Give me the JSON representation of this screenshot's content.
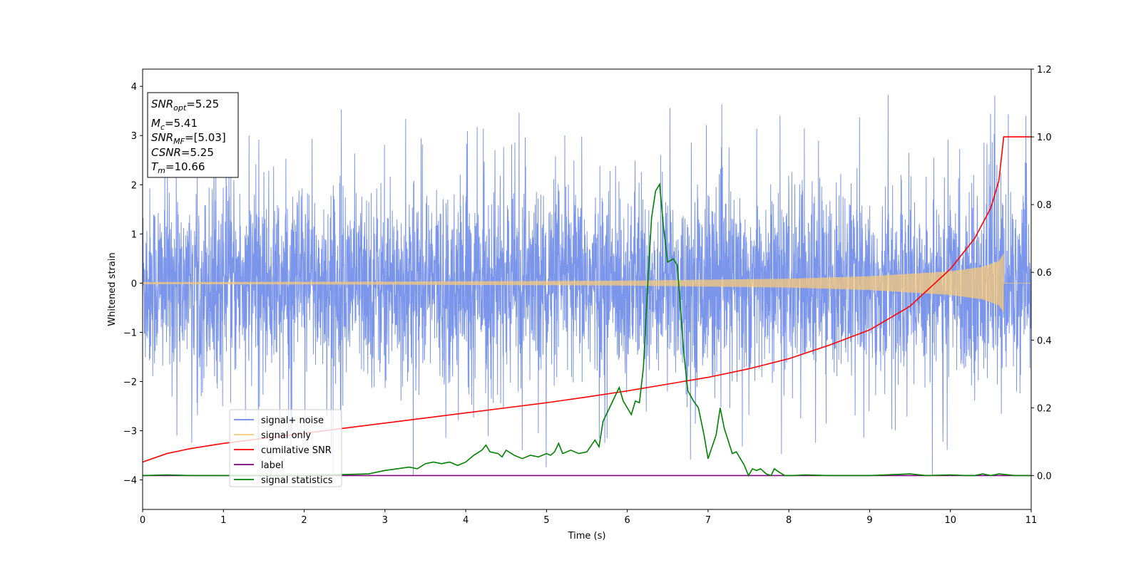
{
  "chart_data": {
    "type": "line",
    "xlabel": "Time (s)",
    "ylabel": "Whitened strain",
    "xlim": [
      0,
      11
    ],
    "ylim": [
      -4.6,
      4.35
    ],
    "y2lim": [
      -0.1,
      1.2
    ],
    "x_ticks": [
      "0",
      "1",
      "2",
      "3",
      "4",
      "5",
      "6",
      "7",
      "8",
      "9",
      "10",
      "11"
    ],
    "y_ticks": [
      "−4",
      "−3",
      "−2",
      "−1",
      "0",
      "1",
      "2",
      "3",
      "4"
    ],
    "y_tick_values": [
      -4,
      -3,
      -2,
      -1,
      0,
      1,
      2,
      3,
      4
    ],
    "y2_ticks": [
      "0.0",
      "0.2",
      "0.4",
      "0.6",
      "0.8",
      "1.0",
      "1.2"
    ],
    "y2_tick_values": [
      0.0,
      0.2,
      0.4,
      0.6,
      0.8,
      1.0,
      1.2
    ],
    "grid": false,
    "legend_position": "bottom-left",
    "annotations": [
      {
        "main": "SNR",
        "sub": "opt",
        "rest": "=5.25"
      },
      {
        "main": "M",
        "sub": "c",
        "rest": "=5.41"
      },
      {
        "main": "SNR",
        "sub": "MF",
        "rest": "=[5.03]"
      },
      {
        "main": "CSNR",
        "sub": "",
        "rest": "=5.25"
      },
      {
        "main": "T",
        "sub": "m",
        "rest": "=10.66"
      }
    ],
    "series": [
      {
        "name": "signal+ noise",
        "axis": "left",
        "color": "#6d8ae8",
        "noise_envelope": {
          "typical_min": -1.9,
          "typical_max": 1.9,
          "extreme_min": -4.2,
          "extreme_max": 3.95
        }
      },
      {
        "name": "signal only",
        "axis": "left",
        "color": "#f5c97a",
        "chirp_envelope": {
          "x": [
            0,
            3,
            6,
            8,
            9,
            10,
            10.4,
            10.6,
            10.66
          ],
          "amplitude": [
            0.02,
            0.03,
            0.05,
            0.09,
            0.14,
            0.24,
            0.33,
            0.45,
            0.6
          ]
        }
      },
      {
        "name": "cumilative SNR",
        "axis": "right",
        "color": "#ff0000",
        "x": [
          0,
          0.3,
          0.6,
          1,
          1.5,
          2,
          2.5,
          3,
          3.5,
          4,
          4.5,
          5,
          5.5,
          6,
          6.5,
          7,
          7.5,
          8,
          8.5,
          9,
          9.5,
          10,
          10.3,
          10.5,
          10.6,
          10.66,
          11
        ],
        "values": [
          0.04,
          0.065,
          0.08,
          0.095,
          0.11,
          0.125,
          0.14,
          0.155,
          0.17,
          0.185,
          0.2,
          0.215,
          0.232,
          0.25,
          0.27,
          0.29,
          0.315,
          0.345,
          0.385,
          0.43,
          0.5,
          0.61,
          0.7,
          0.79,
          0.87,
          1.0,
          1.0
        ]
      },
      {
        "name": "label",
        "axis": "right",
        "color": "#800080",
        "x": [
          0,
          11
        ],
        "values": [
          0.0,
          0.0
        ]
      },
      {
        "name": "signal statistics",
        "axis": "right",
        "color": "#008000",
        "x": [
          0,
          0.3,
          0.6,
          1,
          2,
          2.8,
          3.0,
          3.3,
          3.4,
          3.5,
          3.6,
          3.7,
          3.8,
          3.9,
          4.0,
          4.1,
          4.2,
          4.25,
          4.3,
          4.4,
          4.45,
          4.5,
          4.6,
          4.7,
          4.8,
          4.9,
          5.0,
          5.05,
          5.1,
          5.15,
          5.2,
          5.3,
          5.4,
          5.5,
          5.6,
          5.65,
          5.7,
          5.8,
          5.9,
          5.95,
          6.0,
          6.05,
          6.1,
          6.15,
          6.2,
          6.25,
          6.3,
          6.35,
          6.4,
          6.45,
          6.5,
          6.57,
          6.62,
          6.7,
          6.75,
          6.82,
          6.88,
          6.95,
          7.0,
          7.1,
          7.15,
          7.2,
          7.3,
          7.35,
          7.45,
          7.5,
          7.55,
          7.6,
          7.65,
          7.72,
          7.78,
          7.82,
          7.88,
          7.95,
          8.05,
          8.2,
          8.5,
          9.0,
          9.5,
          9.7,
          10.0,
          10.2,
          10.3,
          10.4,
          10.5,
          10.6,
          10.8,
          11.0
        ],
        "values": [
          0.0,
          0.002,
          0.0,
          0.0,
          0.0,
          0.005,
          0.015,
          0.025,
          0.02,
          0.035,
          0.04,
          0.035,
          0.04,
          0.03,
          0.04,
          0.06,
          0.075,
          0.09,
          0.07,
          0.065,
          0.055,
          0.075,
          0.06,
          0.05,
          0.06,
          0.055,
          0.065,
          0.06,
          0.07,
          0.095,
          0.065,
          0.075,
          0.065,
          0.07,
          0.105,
          0.085,
          0.16,
          0.21,
          0.26,
          0.22,
          0.2,
          0.18,
          0.22,
          0.215,
          0.32,
          0.55,
          0.76,
          0.84,
          0.86,
          0.73,
          0.63,
          0.64,
          0.62,
          0.36,
          0.25,
          0.22,
          0.2,
          0.12,
          0.05,
          0.12,
          0.2,
          0.14,
          0.065,
          0.07,
          0.03,
          0.0,
          0.02,
          0.015,
          0.02,
          0.005,
          0.0,
          0.02,
          0.01,
          0.0,
          0.0,
          0.002,
          0.0,
          0.0,
          0.005,
          0.0,
          0.002,
          0.0,
          0.0,
          0.005,
          0.0,
          0.005,
          0.0,
          0.0
        ]
      }
    ]
  }
}
